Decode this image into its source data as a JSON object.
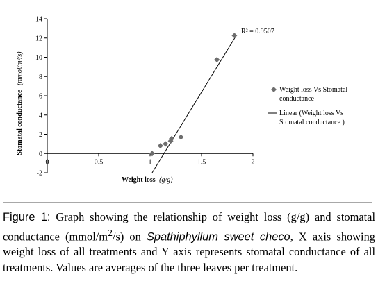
{
  "chart_data": {
    "type": "scatter",
    "x": [
      1.02,
      1.1,
      1.15,
      1.2,
      1.21,
      1.3,
      1.65,
      1.82
    ],
    "y": [
      0.0,
      0.8,
      1.0,
      1.3,
      1.55,
      1.7,
      9.75,
      12.25
    ],
    "xlabel": "Weight loss",
    "xunit": "(g/g)",
    "ylabel": "Stomatal conductance",
    "yunit": "(mmol/m²/s)",
    "xlim": [
      0,
      2
    ],
    "ylim": [
      -2,
      14
    ],
    "xticks": [
      0,
      0.5,
      1,
      1.5,
      2
    ],
    "xtick_labels": [
      "0",
      "0.5",
      "1",
      "1.5",
      "2"
    ],
    "yticks": [
      -2,
      0,
      2,
      4,
      6,
      8,
      10,
      12,
      14
    ],
    "ytick_labels": [
      "-2",
      "0",
      "2",
      "4",
      "6",
      "8",
      "10",
      "12",
      "14"
    ],
    "trendline": {
      "x": [
        1.02,
        1.84
      ],
      "y": [
        -2.0,
        12.3
      ]
    },
    "annotation": "R² = 0.9507",
    "legend": {
      "placement": "right",
      "series_line1": "Weight loss Vs Stomatal",
      "series_line2": "conductance",
      "trend_line1": "Linear (Weight loss Vs",
      "trend_line2": "Stomatal conductance )"
    },
    "grid": false,
    "marker_color": "#6e6e6e",
    "line_color": "#000000"
  },
  "caption": {
    "label": "Figure 1:",
    "text_a": " Graph showing the relationship of weight loss (g/g) and stomatal conductance (mmol/m",
    "sup": "2",
    "text_b": "/s) on ",
    "species": "Spathiphyllum sweet checo",
    "text_c": ", X axis showing weight loss of all treatments and Y axis represents stomatal conductance of all treatments. Values are averages of the three leaves per treatment."
  }
}
